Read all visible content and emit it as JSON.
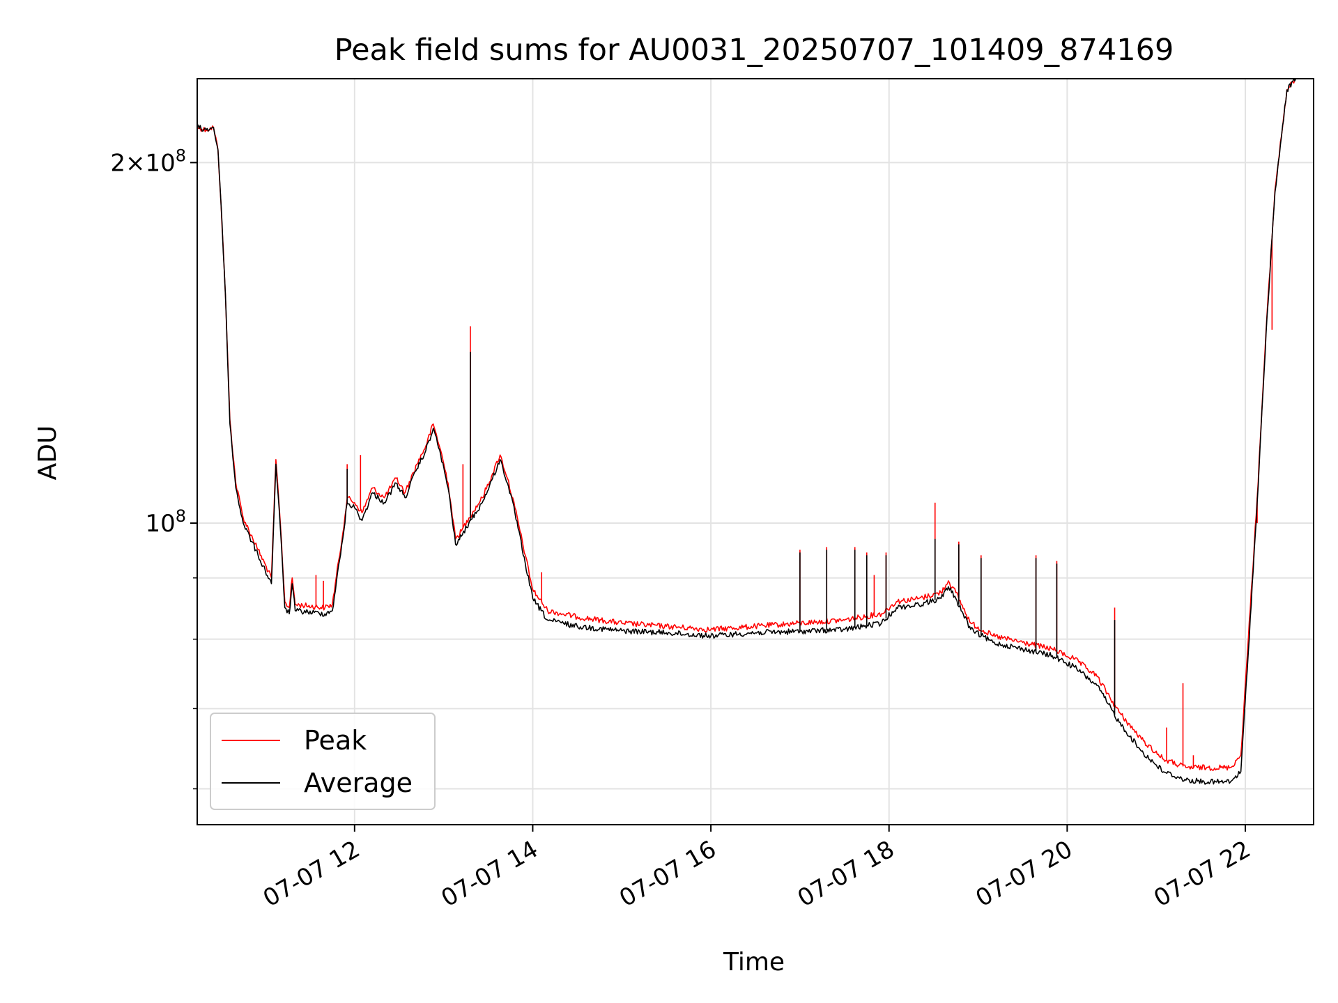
{
  "chart_data": {
    "type": "line",
    "title": "Peak field sums for AU0031_20250707_101409_874169",
    "xlabel": "Time",
    "ylabel": "ADU",
    "y_scale": "log",
    "y_major_tick_labels": [
      {
        "value": 200000000,
        "mant": "2",
        "times": "×",
        "base": "10",
        "exp": "8"
      },
      {
        "value": 100000000,
        "mant": "",
        "times": "",
        "base": "10",
        "exp": "8"
      }
    ],
    "y_minor_ticks": [
      60000000,
      70000000,
      80000000,
      90000000
    ],
    "ylim": [
      56000000,
      235000000
    ],
    "xlim": [
      "2025-07-07 10:14",
      "2025-07-07 22:46"
    ],
    "x_ticks": [
      {
        "value": "2025-07-07 12:00",
        "label": "07-07 12"
      },
      {
        "value": "2025-07-07 14:00",
        "label": "07-07 14"
      },
      {
        "value": "2025-07-07 16:00",
        "label": "07-07 16"
      },
      {
        "value": "2025-07-07 18:00",
        "label": "07-07 18"
      },
      {
        "value": "2025-07-07 20:00",
        "label": "07-07 20"
      },
      {
        "value": "2025-07-07 22:00",
        "label": "07-07 22"
      }
    ],
    "grid": true,
    "legend_position": "lower-left",
    "series": [
      {
        "name": "Peak",
        "color": "#ff0000",
        "points": [
          [
            "2025-07-07 10:14",
            214000000
          ],
          [
            "2025-07-07 10:20",
            213000000
          ],
          [
            "2025-07-07 10:25",
            214000000
          ],
          [
            "2025-07-07 10:28",
            205000000
          ],
          [
            "2025-07-07 10:30",
            185000000
          ],
          [
            "2025-07-07 10:33",
            155000000
          ],
          [
            "2025-07-07 10:36",
            122000000
          ],
          [
            "2025-07-07 10:40",
            108000000
          ],
          [
            "2025-07-07 10:45",
            101000000
          ],
          [
            "2025-07-07 10:55",
            95000000
          ],
          [
            "2025-07-07 11:04",
            90000000
          ],
          [
            "2025-07-07 11:07",
            113000000
          ],
          [
            "2025-07-07 11:10",
            100000000
          ],
          [
            "2025-07-07 11:13",
            86000000
          ],
          [
            "2025-07-07 11:16",
            85000000
          ],
          [
            "2025-07-07 11:18",
            90000000
          ],
          [
            "2025-07-07 11:20",
            85500000
          ],
          [
            "2025-07-07 11:40",
            85000000
          ],
          [
            "2025-07-07 11:45",
            85500000
          ],
          [
            "2025-07-07 11:52",
            98000000
          ],
          [
            "2025-07-07 11:55",
            105000000
          ],
          [
            "2025-07-07 12:00",
            104000000
          ],
          [
            "2025-07-07 12:05",
            102000000
          ],
          [
            "2025-07-07 12:12",
            107000000
          ],
          [
            "2025-07-07 12:20",
            105000000
          ],
          [
            "2025-07-07 12:28",
            109000000
          ],
          [
            "2025-07-07 12:34",
            106000000
          ],
          [
            "2025-07-07 12:42",
            112000000
          ],
          [
            "2025-07-07 12:48",
            116000000
          ],
          [
            "2025-07-07 12:53",
            121000000
          ],
          [
            "2025-07-07 12:58",
            115000000
          ],
          [
            "2025-07-07 13:03",
            108000000
          ],
          [
            "2025-07-07 13:08",
            97000000
          ],
          [
            "2025-07-07 13:12",
            98500000
          ],
          [
            "2025-07-07 13:17",
            101000000
          ],
          [
            "2025-07-07 13:26",
            105000000
          ],
          [
            "2025-07-07 13:33",
            110000000
          ],
          [
            "2025-07-07 13:38",
            114000000
          ],
          [
            "2025-07-07 13:43",
            109000000
          ],
          [
            "2025-07-07 13:48",
            103000000
          ],
          [
            "2025-07-07 13:55",
            94000000
          ],
          [
            "2025-07-07 14:00",
            88000000
          ],
          [
            "2025-07-07 14:10",
            84500000
          ],
          [
            "2025-07-07 14:30",
            83500000
          ],
          [
            "2025-07-07 15:00",
            82500000
          ],
          [
            "2025-07-07 15:30",
            82000000
          ],
          [
            "2025-07-07 16:00",
            81500000
          ],
          [
            "2025-07-07 16:30",
            82000000
          ],
          [
            "2025-07-07 17:00",
            82500000
          ],
          [
            "2025-07-07 17:30",
            83000000
          ],
          [
            "2025-07-07 17:55",
            84000000
          ],
          [
            "2025-07-07 18:05",
            86000000
          ],
          [
            "2025-07-07 18:20",
            86500000
          ],
          [
            "2025-07-07 18:35",
            87500000
          ],
          [
            "2025-07-07 18:40",
            89500000
          ],
          [
            "2025-07-07 18:45",
            87500000
          ],
          [
            "2025-07-07 18:55",
            82500000
          ],
          [
            "2025-07-07 19:10",
            80500000
          ],
          [
            "2025-07-07 19:30",
            79500000
          ],
          [
            "2025-07-07 19:50",
            78500000
          ],
          [
            "2025-07-07 20:05",
            77000000
          ],
          [
            "2025-07-07 20:20",
            74500000
          ],
          [
            "2025-07-07 20:35",
            69500000
          ],
          [
            "2025-07-07 20:50",
            66000000
          ],
          [
            "2025-07-07 21:05",
            63500000
          ],
          [
            "2025-07-07 21:20",
            62500000
          ],
          [
            "2025-07-07 21:35",
            62500000
          ],
          [
            "2025-07-07 21:50",
            62500000
          ],
          [
            "2025-07-07 21:57",
            64000000
          ],
          [
            "2025-07-07 22:02",
            80000000
          ],
          [
            "2025-07-07 22:08",
            105000000
          ],
          [
            "2025-07-07 22:14",
            145000000
          ],
          [
            "2025-07-07 22:20",
            190000000
          ],
          [
            "2025-07-07 22:28",
            230000000
          ],
          [
            "2025-07-07 22:34",
            235000000
          ]
        ],
        "spikes": [
          [
            "2025-07-07 11:34",
            90500000
          ],
          [
            "2025-07-07 11:39",
            89500000
          ],
          [
            "2025-07-07 11:55",
            112000000
          ],
          [
            "2025-07-07 12:04",
            114000000
          ],
          [
            "2025-07-07 13:13",
            112000000
          ],
          [
            "2025-07-07 13:18",
            146000000
          ],
          [
            "2025-07-07 14:06",
            91000000
          ],
          [
            "2025-07-07 17:00",
            95000000
          ],
          [
            "2025-07-07 17:18",
            95500000
          ],
          [
            "2025-07-07 17:37",
            95500000
          ],
          [
            "2025-07-07 17:45",
            94500000
          ],
          [
            "2025-07-07 17:50",
            90500000
          ],
          [
            "2025-07-07 17:58",
            94500000
          ],
          [
            "2025-07-07 18:31",
            104000000
          ],
          [
            "2025-07-07 18:47",
            96500000
          ],
          [
            "2025-07-07 19:02",
            94000000
          ],
          [
            "2025-07-07 19:39",
            94000000
          ],
          [
            "2025-07-07 19:53",
            93000000
          ],
          [
            "2025-07-07 20:32",
            85000000
          ],
          [
            "2025-07-07 21:07",
            67500000
          ],
          [
            "2025-07-07 21:18",
            73500000
          ],
          [
            "2025-07-07 21:25",
            64000000
          ],
          [
            "2025-07-07 22:08",
            100000000
          ],
          [
            "2025-07-07 22:18",
            145000000
          ]
        ]
      },
      {
        "name": "Average",
        "color": "#000000",
        "points": [
          [
            "2025-07-07 10:14",
            214000000
          ],
          [
            "2025-07-07 10:20",
            213000000
          ],
          [
            "2025-07-07 10:25",
            214000000
          ],
          [
            "2025-07-07 10:28",
            205000000
          ],
          [
            "2025-07-07 10:30",
            185000000
          ],
          [
            "2025-07-07 10:33",
            155000000
          ],
          [
            "2025-07-07 10:36",
            121000000
          ],
          [
            "2025-07-07 10:40",
            107000000
          ],
          [
            "2025-07-07 10:45",
            100000000
          ],
          [
            "2025-07-07 10:55",
            94000000
          ],
          [
            "2025-07-07 11:04",
            89000000
          ],
          [
            "2025-07-07 11:07",
            112000000
          ],
          [
            "2025-07-07 11:10",
            99000000
          ],
          [
            "2025-07-07 11:13",
            85000000
          ],
          [
            "2025-07-07 11:16",
            84000000
          ],
          [
            "2025-07-07 11:18",
            89000000
          ],
          [
            "2025-07-07 11:20",
            84500000
          ],
          [
            "2025-07-07 11:40",
            84000000
          ],
          [
            "2025-07-07 11:45",
            84500000
          ],
          [
            "2025-07-07 11:52",
            97000000
          ],
          [
            "2025-07-07 11:55",
            104000000
          ],
          [
            "2025-07-07 12:00",
            103000000
          ],
          [
            "2025-07-07 12:05",
            100500000
          ],
          [
            "2025-07-07 12:12",
            106000000
          ],
          [
            "2025-07-07 12:20",
            104000000
          ],
          [
            "2025-07-07 12:28",
            108000000
          ],
          [
            "2025-07-07 12:34",
            105000000
          ],
          [
            "2025-07-07 12:42",
            111000000
          ],
          [
            "2025-07-07 12:48",
            115000000
          ],
          [
            "2025-07-07 12:53",
            120000000
          ],
          [
            "2025-07-07 12:58",
            114000000
          ],
          [
            "2025-07-07 13:03",
            107000000
          ],
          [
            "2025-07-07 13:08",
            96000000
          ],
          [
            "2025-07-07 13:12",
            97500000
          ],
          [
            "2025-07-07 13:17",
            100000000
          ],
          [
            "2025-07-07 13:26",
            104000000
          ],
          [
            "2025-07-07 13:33",
            109000000
          ],
          [
            "2025-07-07 13:38",
            113000000
          ],
          [
            "2025-07-07 13:43",
            108000000
          ],
          [
            "2025-07-07 13:48",
            102000000
          ],
          [
            "2025-07-07 13:55",
            92500000
          ],
          [
            "2025-07-07 14:00",
            86500000
          ],
          [
            "2025-07-07 14:10",
            83000000
          ],
          [
            "2025-07-07 14:30",
            82000000
          ],
          [
            "2025-07-07 15:00",
            81300000
          ],
          [
            "2025-07-07 15:30",
            81000000
          ],
          [
            "2025-07-07 16:00",
            80500000
          ],
          [
            "2025-07-07 16:30",
            81000000
          ],
          [
            "2025-07-07 17:00",
            81200000
          ],
          [
            "2025-07-07 17:30",
            81500000
          ],
          [
            "2025-07-07 17:55",
            82500000
          ],
          [
            "2025-07-07 18:05",
            85000000
          ],
          [
            "2025-07-07 18:20",
            85500000
          ],
          [
            "2025-07-07 18:35",
            86500000
          ],
          [
            "2025-07-07 18:40",
            88500000
          ],
          [
            "2025-07-07 18:45",
            86500000
          ],
          [
            "2025-07-07 18:55",
            81500000
          ],
          [
            "2025-07-07 19:10",
            79500000
          ],
          [
            "2025-07-07 19:30",
            78500000
          ],
          [
            "2025-07-07 19:50",
            77500000
          ],
          [
            "2025-07-07 20:05",
            75800000
          ],
          [
            "2025-07-07 20:20",
            73200000
          ],
          [
            "2025-07-07 20:35",
            68200000
          ],
          [
            "2025-07-07 20:50",
            64500000
          ],
          [
            "2025-07-07 21:05",
            62000000
          ],
          [
            "2025-07-07 21:20",
            61000000
          ],
          [
            "2025-07-07 21:35",
            60800000
          ],
          [
            "2025-07-07 21:50",
            60800000
          ],
          [
            "2025-07-07 21:57",
            62000000
          ],
          [
            "2025-07-07 22:02",
            78000000
          ],
          [
            "2025-07-07 22:08",
            104000000
          ],
          [
            "2025-07-07 22:14",
            144000000
          ],
          [
            "2025-07-07 22:20",
            189000000
          ],
          [
            "2025-07-07 22:28",
            230000000
          ],
          [
            "2025-07-07 22:34",
            235000000
          ]
        ],
        "spikes": [
          [
            "2025-07-07 11:55",
            111000000
          ],
          [
            "2025-07-07 13:18",
            139000000
          ],
          [
            "2025-07-07 17:00",
            94500000
          ],
          [
            "2025-07-07 17:18",
            95000000
          ],
          [
            "2025-07-07 17:37",
            95000000
          ],
          [
            "2025-07-07 17:45",
            94000000
          ],
          [
            "2025-07-07 17:58",
            94000000
          ],
          [
            "2025-07-07 18:31",
            97000000
          ],
          [
            "2025-07-07 18:47",
            96000000
          ],
          [
            "2025-07-07 19:02",
            93500000
          ],
          [
            "2025-07-07 19:39",
            93500000
          ],
          [
            "2025-07-07 19:53",
            92500000
          ],
          [
            "2025-07-07 20:32",
            83000000
          ]
        ]
      }
    ]
  }
}
